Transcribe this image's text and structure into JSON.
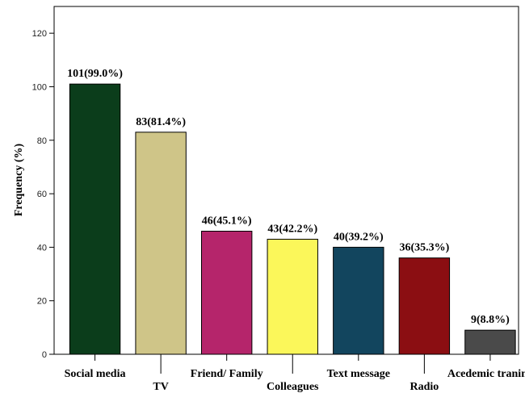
{
  "chart_data": {
    "type": "bar",
    "ylabel": "Frequency (%)",
    "ylim": [
      0,
      130
    ],
    "yticks": [
      0,
      20,
      40,
      60,
      80,
      100,
      120
    ],
    "grid": false,
    "categories": [
      "Social media",
      "TV",
      "Friend/ Family",
      "Colleagues",
      "Text message",
      "Radio",
      "Acedemic traning"
    ],
    "values": [
      101,
      83,
      46,
      43,
      40,
      36,
      9
    ],
    "data_labels": [
      "101(99.0%)",
      "83(81.4%)",
      "46(45.1%)",
      "43(42.2%)",
      "40(39.2%)",
      "36(35.3%)",
      "9(8.8%)"
    ],
    "colors": [
      "#0b3d1b",
      "#cfc588",
      "#b5256b",
      "#fbf75a",
      "#12455e",
      "#8b0e12",
      "#4a4a4a"
    ]
  }
}
